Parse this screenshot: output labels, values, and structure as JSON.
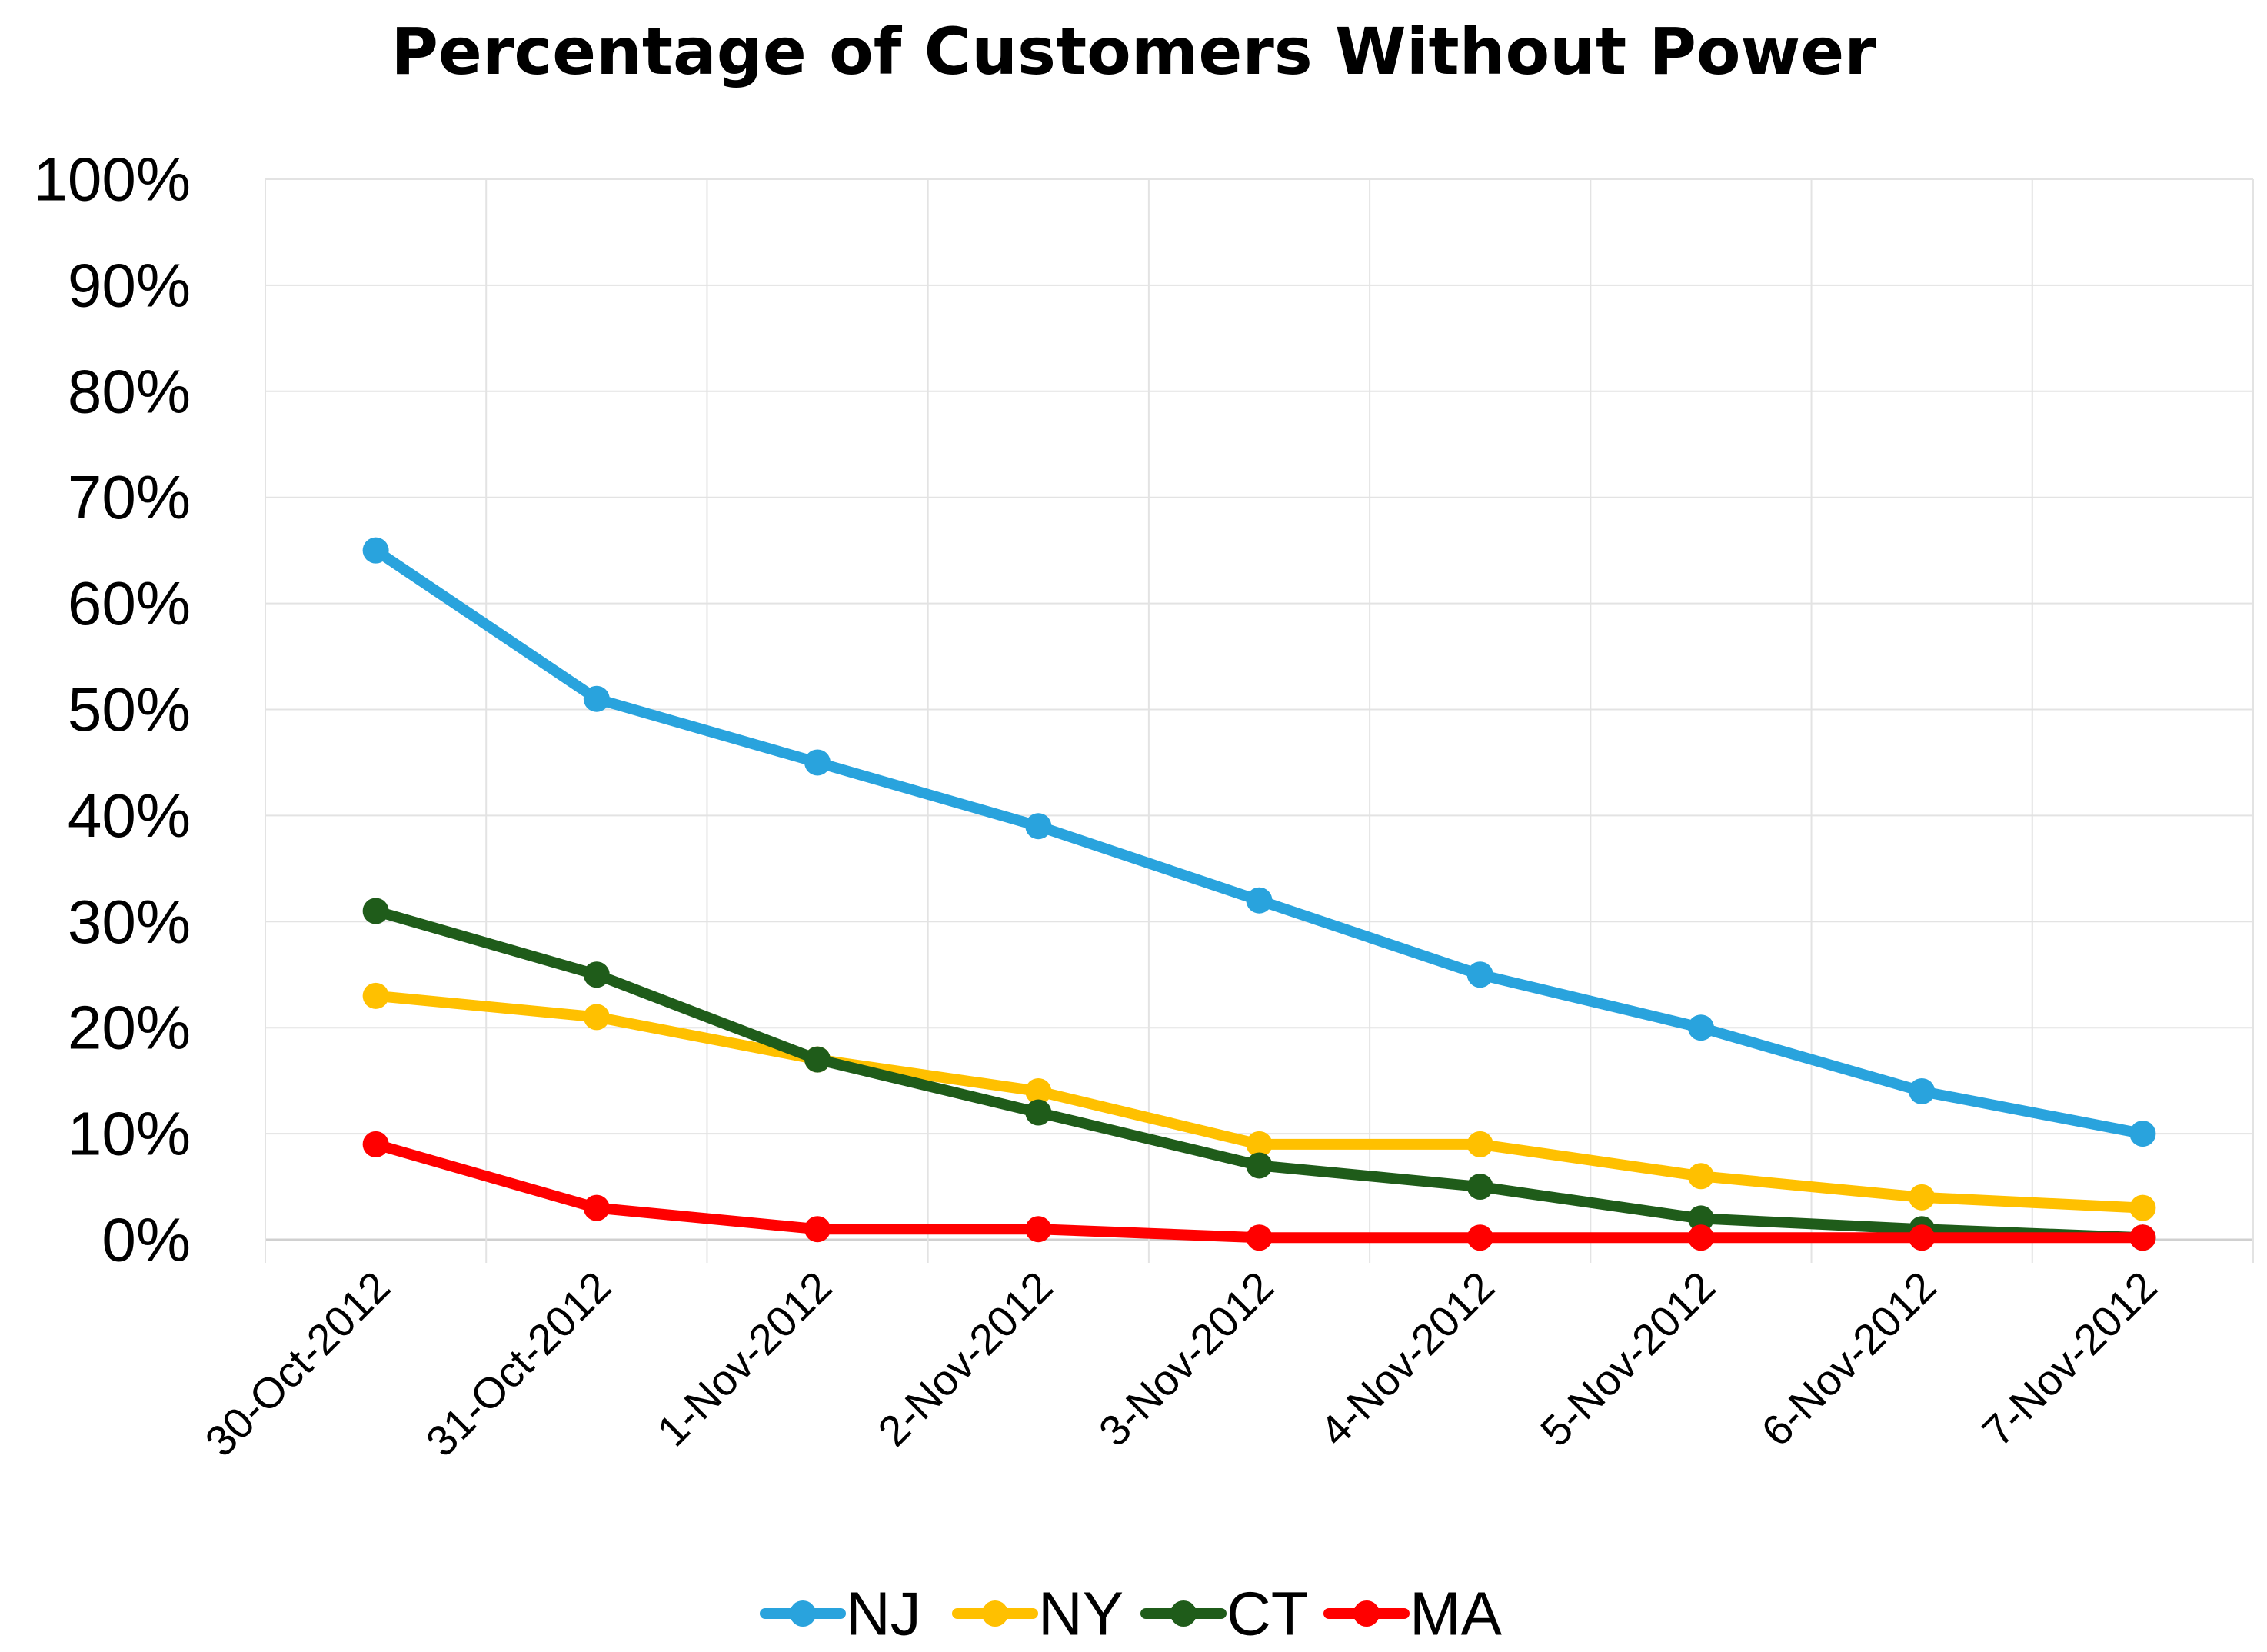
{
  "chart_data": {
    "type": "line",
    "title": "Percentage of Customers Without Power",
    "xlabel": "",
    "ylabel": "",
    "categories": [
      "30-Oct-2012",
      "31-Oct-2012",
      "1-Nov-2012",
      "2-Nov-2012",
      "3-Nov-2012",
      "4-Nov-2012",
      "5-Nov-2012",
      "6-Nov-2012",
      "7-Nov-2012"
    ],
    "ylim": [
      0,
      100
    ],
    "yticks": [
      "0%",
      "10%",
      "20%",
      "30%",
      "40%",
      "50%",
      "60%",
      "70%",
      "80%",
      "90%",
      "100%"
    ],
    "grid": true,
    "legend_position": "bottom",
    "series": [
      {
        "name": "NJ",
        "color": "#29A3DD",
        "values": [
          65,
          51,
          45,
          39,
          32,
          25,
          20,
          14,
          10
        ]
      },
      {
        "name": "NY",
        "color": "#FFC000",
        "values": [
          23,
          21,
          17,
          14,
          9,
          9,
          6,
          4,
          3
        ]
      },
      {
        "name": "CT",
        "color": "#1F5C1A",
        "values": [
          31,
          25,
          17,
          12,
          7,
          5,
          2,
          1,
          0.2
        ]
      },
      {
        "name": "MA",
        "color": "#FF0000",
        "values": [
          9,
          3,
          1,
          1,
          0.2,
          0.2,
          0.2,
          0.2,
          0.2
        ]
      }
    ]
  }
}
